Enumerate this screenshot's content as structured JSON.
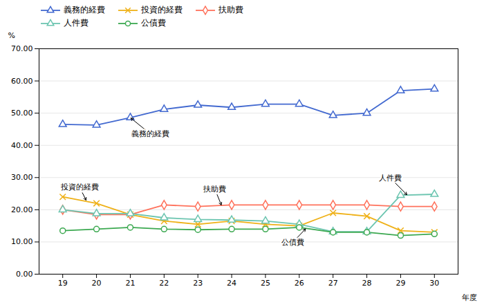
{
  "chart_data": {
    "type": "line",
    "x_label": "年度",
    "y_label": "%",
    "x": [
      19,
      20,
      21,
      22,
      23,
      24,
      25,
      26,
      27,
      28,
      29,
      30
    ],
    "series": [
      {
        "name": "義務的経費",
        "marker": "triangle",
        "values": [
          46.5,
          46.3,
          48.6,
          51.2,
          52.5,
          51.8,
          52.8,
          52.8,
          49.3,
          50.0,
          57.0,
          57.5
        ]
      },
      {
        "name": "投資的経費",
        "marker": "times",
        "values": [
          24.0,
          22.0,
          18.5,
          16.5,
          15.5,
          16.5,
          15.5,
          15.0,
          19.0,
          18.0,
          13.5,
          13.0
        ]
      },
      {
        "name": "扶助費",
        "marker": "diamond",
        "values": [
          20.0,
          18.5,
          18.5,
          21.5,
          21.0,
          21.5,
          21.5,
          21.5,
          21.5,
          21.5,
          21.0,
          21.0
        ]
      },
      {
        "name": "人件費",
        "marker": "triangle",
        "values": [
          20.0,
          18.8,
          18.8,
          17.5,
          17.0,
          16.8,
          16.5,
          15.5,
          13.2,
          13.2,
          24.5,
          24.8
        ]
      },
      {
        "name": "公債費",
        "marker": "circle",
        "values": [
          13.5,
          14.0,
          14.5,
          14.0,
          13.8,
          14.0,
          14.0,
          14.5,
          13.0,
          13.0,
          12.0,
          12.5
        ]
      }
    ],
    "xlim": [
      18.3,
      30.7
    ],
    "xticks": [
      19,
      20,
      21,
      22,
      23,
      24,
      25,
      26,
      27,
      28,
      29,
      30
    ],
    "ylim": [
      0.0,
      70.0
    ],
    "yticks": [
      {
        "value": 0.0,
        "label": "0.00"
      },
      {
        "value": 10.0,
        "label": "10.00"
      },
      {
        "value": 20.0,
        "label": "20.00"
      },
      {
        "value": 30.0,
        "label": "30.00"
      },
      {
        "value": 40.0,
        "label": "40.00"
      },
      {
        "value": 50.0,
        "label": "50.00"
      },
      {
        "value": 60.0,
        "label": "60.00"
      },
      {
        "value": 70.0,
        "label": "70.00"
      }
    ],
    "grid": true,
    "legend": "upper left",
    "annotations": [
      {
        "text": "義務的経費",
        "xy": [
          21.0,
          48.6
        ],
        "xytext": [
          21.6,
          43.5
        ]
      },
      {
        "text": "投資的経費",
        "xy": [
          19.7,
          22.8
        ],
        "xytext": [
          19.5,
          27.0
        ]
      },
      {
        "text": "扶助費",
        "xy": [
          23.7,
          21.3
        ],
        "xytext": [
          23.5,
          26.5
        ]
      },
      {
        "text": "人件費",
        "xy": [
          29.2,
          24.5
        ],
        "xytext": [
          28.7,
          29.8
        ]
      },
      {
        "text": "公債費",
        "xy": [
          26.2,
          14.2
        ],
        "xytext": [
          25.8,
          9.8
        ]
      }
    ]
  }
}
